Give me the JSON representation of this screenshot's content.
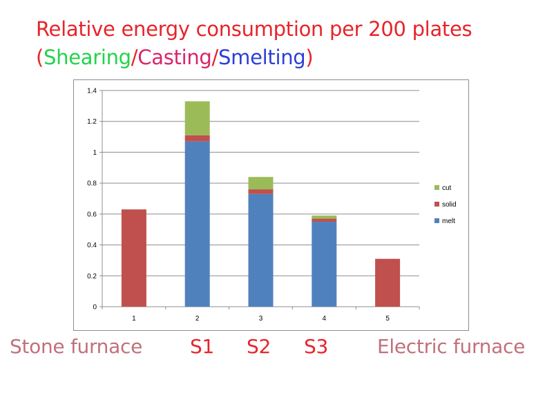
{
  "title": {
    "line1": "Relative energy consumption per 200 plates",
    "open_paren": "(",
    "shearing": "Shearing",
    "slash1": "/",
    "casting": "Casting",
    "slash2": "/",
    "smelting": "Smelting",
    "close_paren": ")"
  },
  "colors": {
    "title_red": "#e8232a",
    "shearing_green": "#22d44a",
    "casting_pink": "#d9246a",
    "smelting_blue": "#2a3fd8",
    "furnace_label": "#c0707a",
    "melt": "#4f81bd",
    "solid": "#c0504d",
    "cut": "#9bbb59"
  },
  "chart_data": {
    "type": "bar",
    "stacked": true,
    "categories": [
      "1",
      "2",
      "3",
      "4",
      "5"
    ],
    "series": [
      {
        "name": "melt",
        "color": "#4f81bd",
        "values": [
          0,
          1.07,
          0.73,
          0.55,
          0
        ]
      },
      {
        "name": "solid",
        "color": "#c0504d",
        "values": [
          0.63,
          0.04,
          0.03,
          0.02,
          0.31
        ]
      },
      {
        "name": "cut",
        "color": "#9bbb59",
        "values": [
          0,
          0.22,
          0.08,
          0.02,
          0
        ]
      }
    ],
    "ylim": [
      0,
      1.4
    ],
    "yticks": [
      "0",
      "0.2",
      "0.4",
      "0.6",
      "0.8",
      "1",
      "1.2",
      "1.4"
    ],
    "ytick_values": [
      0,
      0.2,
      0.4,
      0.6,
      0.8,
      1,
      1.2,
      1.4
    ],
    "grid": true,
    "legend": {
      "position": "right",
      "order": [
        "cut",
        "solid",
        "melt"
      ]
    }
  },
  "bottom_labels": {
    "stone": "Stone furnace",
    "s1": "S1",
    "s2": "S2",
    "s3": "S3",
    "electric": "Electric furnace"
  }
}
